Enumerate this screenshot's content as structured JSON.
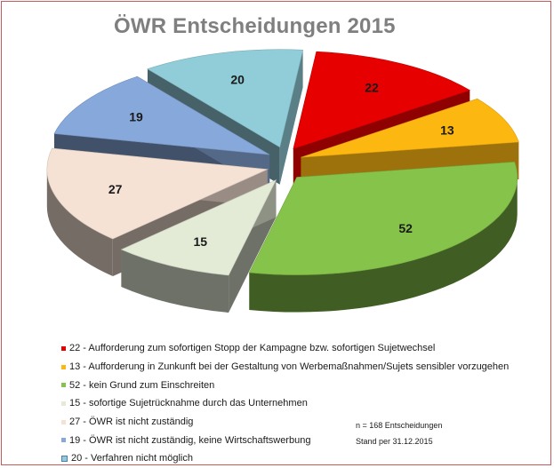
{
  "chart_data": {
    "type": "pie",
    "title": "ÖWR Entscheidungen 2015",
    "exploded": true,
    "three_d": true,
    "legend_position": "bottom-left",
    "slices": [
      {
        "value": 22,
        "label": "22",
        "legend": "22 - Aufforderung zum sofortigen Stopp der Kampagne bzw. sofortigen Sujetwechsel",
        "color": "#e60000"
      },
      {
        "value": 13,
        "label": "13",
        "legend": "13 - Aufforderung in Zunkunft bei der Gestaltung von Werbemaßnahmen/Sujets sensibler vorzugehen",
        "color": "#fdb711"
      },
      {
        "value": 52,
        "label": "52",
        "legend": "52 - kein Grund zum Einschreiten",
        "color": "#86c34a"
      },
      {
        "value": 15,
        "label": "15",
        "legend": "15 - sofortige Sujetrücknahme durch das Unternehmen",
        "color": "#e3ebd7"
      },
      {
        "value": 27,
        "label": "27",
        "legend": "27 - ÖWR ist nicht zuständig",
        "color": "#f5e2d5"
      },
      {
        "value": 19,
        "label": "19",
        "legend": "19 - ÖWR ist nicht zuständig, keine Wirtschaftswerbung",
        "color": "#87a8da"
      },
      {
        "value": 20,
        "label": "20",
        "legend": "20 - Verfahren nicht möglich",
        "color": "#91cdd8"
      }
    ]
  },
  "notes": {
    "total": "n = 168 Entscheidungen",
    "date": "Stand per 31.12.2015"
  }
}
